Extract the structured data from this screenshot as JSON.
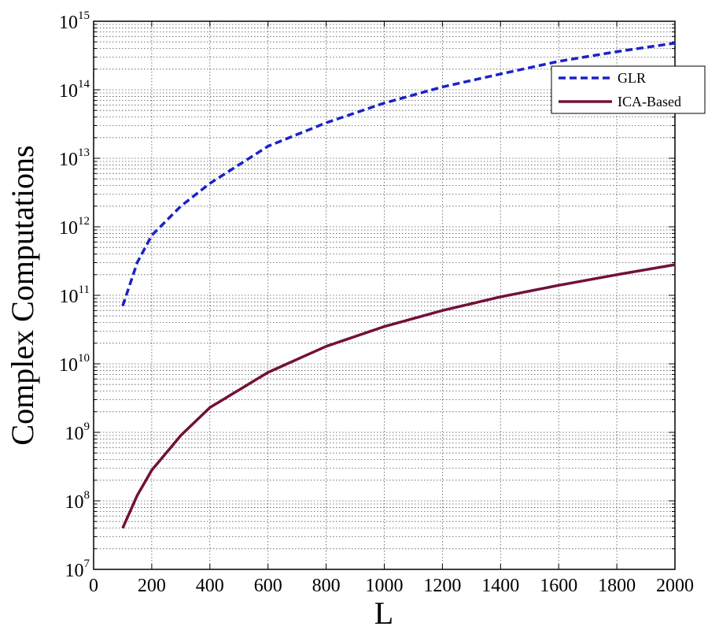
{
  "chart_data": {
    "type": "line",
    "title": "",
    "xlabel": "L",
    "ylabel": "Complex Computations",
    "xlim": [
      0,
      2000
    ],
    "ylim": [
      10000000,
      1000000000000000
    ],
    "yscale": "log",
    "grid": "on (major and minor, dotted)",
    "legend_position": "top-right",
    "xticks": [
      0,
      200,
      400,
      600,
      800,
      1000,
      1200,
      1400,
      1600,
      1800,
      2000
    ],
    "yticks": [
      {
        "base": "10",
        "exp": "7",
        "value": 10000000
      },
      {
        "base": "10",
        "exp": "8",
        "value": 100000000
      },
      {
        "base": "10",
        "exp": "9",
        "value": 1000000000
      },
      {
        "base": "10",
        "exp": "10",
        "value": 10000000000
      },
      {
        "base": "10",
        "exp": "11",
        "value": 100000000000
      },
      {
        "base": "10",
        "exp": "12",
        "value": 1000000000000
      },
      {
        "base": "10",
        "exp": "13",
        "value": 10000000000000
      },
      {
        "base": "10",
        "exp": "14",
        "value": 100000000000000
      },
      {
        "base": "10",
        "exp": "15",
        "value": 1000000000000000
      }
    ],
    "series": [
      {
        "name": "GLR",
        "color": "#1a22c8",
        "style": "dashed",
        "x": [
          100,
          150,
          200,
          300,
          400,
          600,
          800,
          1000,
          1200,
          1400,
          1600,
          1800,
          2000
        ],
        "y": [
          70000000000,
          300000000000,
          750000000000,
          2000000000000,
          4300000000000,
          15000000000000,
          33000000000000,
          64000000000000,
          110000000000000,
          170000000000000,
          260000000000000,
          360000000000000,
          480000000000000
        ]
      },
      {
        "name": "ICA-Based",
        "color": "#72103a",
        "style": "solid",
        "x": [
          100,
          150,
          200,
          300,
          400,
          600,
          800,
          1000,
          1200,
          1400,
          1600,
          1800,
          2000
        ],
        "y": [
          40000000,
          120000000,
          280000000,
          900000000,
          2300000000,
          7500000000,
          18000000000,
          35000000000,
          60000000000,
          95000000000,
          140000000000,
          200000000000,
          280000000000
        ]
      }
    ]
  }
}
